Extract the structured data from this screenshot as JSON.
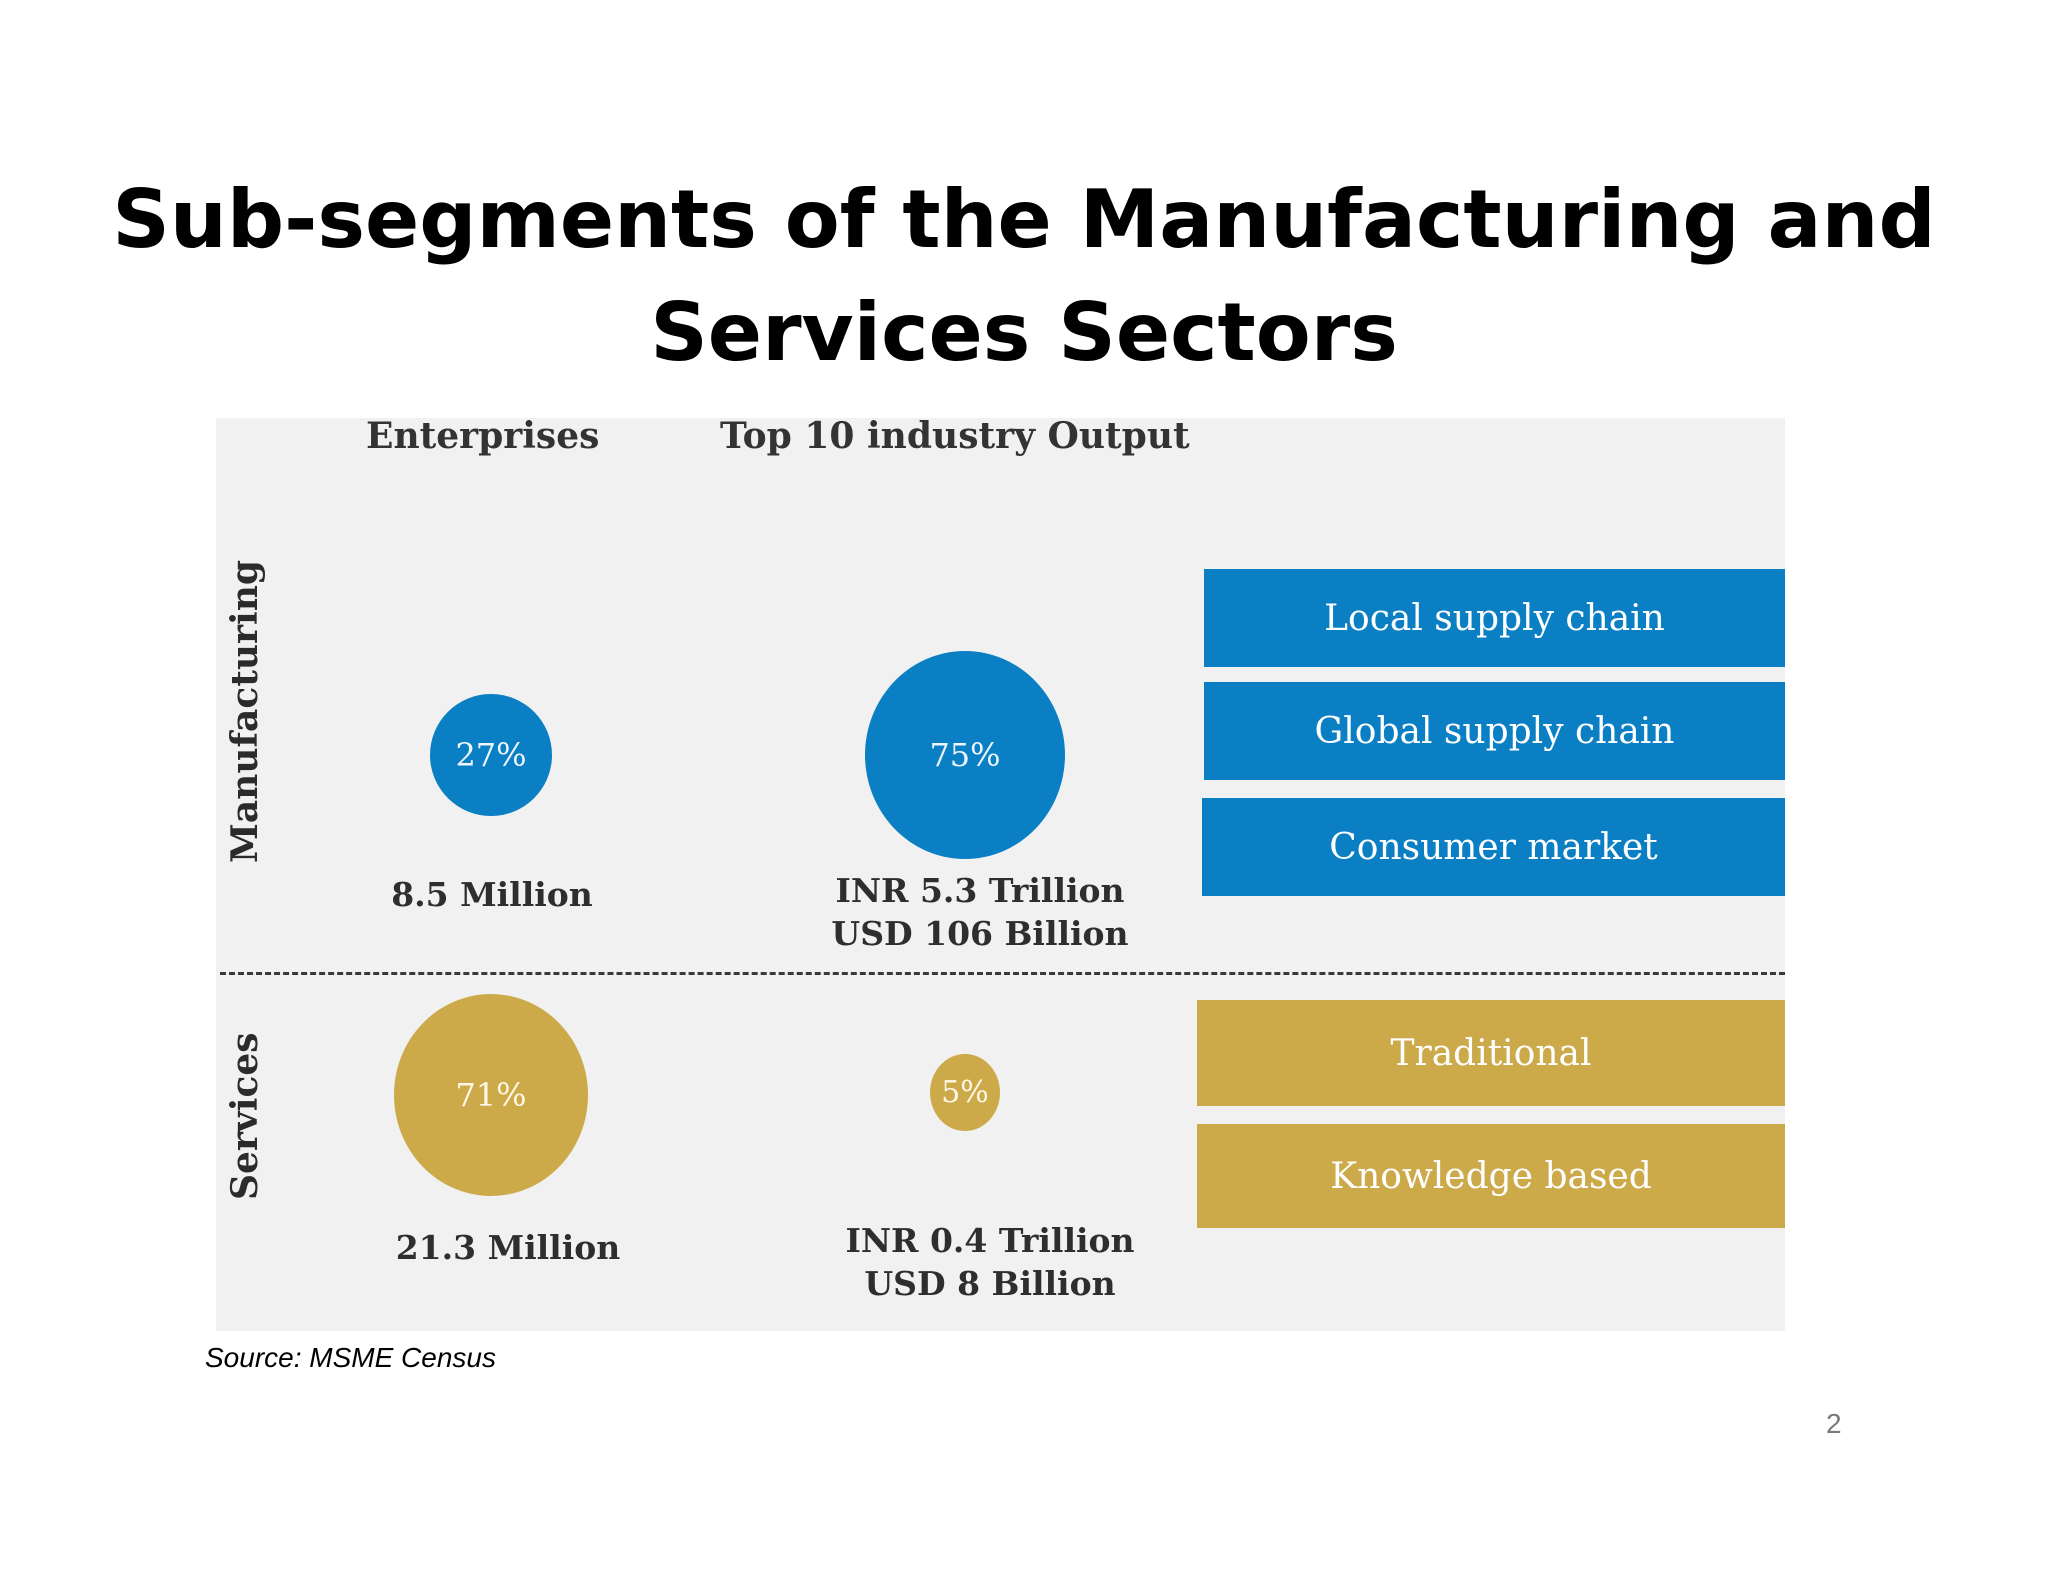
{
  "slide": {
    "title_line1": "Sub-segments of the Manufacturing and",
    "title_line2": "Services Sectors",
    "source": "Source: MSME Census",
    "page_number": "2"
  },
  "figure": {
    "column_headers": {
      "enterprises": "Enterprises",
      "output": "Top 10 industry Output"
    },
    "rows": {
      "manufacturing": {
        "label": "Manufacturing",
        "enterprises_share": "27%",
        "enterprises_count": "8.5 Million",
        "output_share": "75%",
        "output_inr": "INR 5.3 Trillion",
        "output_usd": "USD 106 Billion",
        "sub_segments": [
          "Local supply chain",
          "Global supply chain",
          "Consumer  market"
        ]
      },
      "services": {
        "label": "Services",
        "enterprises_share": "71%",
        "enterprises_count": "21.3 Million",
        "output_share": "5%",
        "output_inr": "INR 0.4 Trillion",
        "output_usd": "USD 8 Billion",
        "sub_segments": [
          "Traditional",
          "Knowledge  based"
        ]
      }
    },
    "colors": {
      "manufacturing": "#0a7fc4",
      "services": "#ccaa4a",
      "panel_background": "#f1f1f1"
    }
  }
}
